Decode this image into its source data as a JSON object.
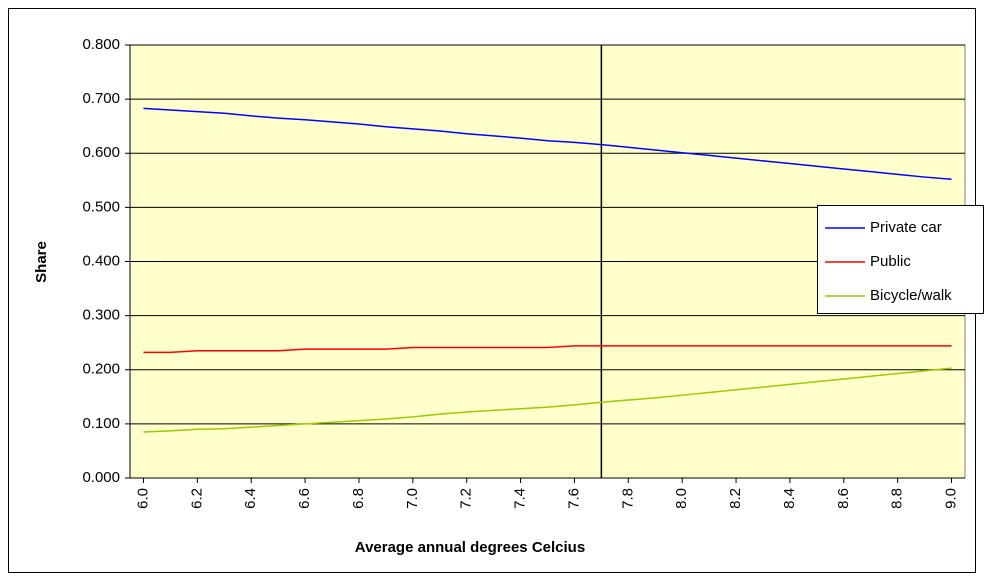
{
  "chart_data": {
    "type": "line",
    "xlabel": "Average annual degrees Celcius",
    "ylabel": "Share",
    "x": [
      6.0,
      6.1,
      6.2,
      6.3,
      6.4,
      6.5,
      6.6,
      6.7,
      6.8,
      6.9,
      7.0,
      7.1,
      7.2,
      7.3,
      7.4,
      7.5,
      7.6,
      7.7,
      7.8,
      7.9,
      8.0,
      8.1,
      8.2,
      8.3,
      8.4,
      8.5,
      8.6,
      8.7,
      8.8,
      8.9,
      9.0
    ],
    "series": [
      {
        "name": "Private car",
        "color": "#0000ff",
        "values": [
          0.683,
          0.68,
          0.677,
          0.674,
          0.669,
          0.665,
          0.662,
          0.658,
          0.654,
          0.649,
          0.645,
          0.641,
          0.636,
          0.632,
          0.628,
          0.623,
          0.62,
          0.616,
          0.611,
          0.606,
          0.601,
          0.596,
          0.591,
          0.586,
          0.581,
          0.576,
          0.571,
          0.566,
          0.561,
          0.556,
          0.552
        ]
      },
      {
        "name": "Public",
        "color": "#ff0000",
        "values": [
          0.232,
          0.232,
          0.235,
          0.235,
          0.235,
          0.235,
          0.238,
          0.238,
          0.238,
          0.238,
          0.241,
          0.241,
          0.241,
          0.241,
          0.241,
          0.241,
          0.244,
          0.244,
          0.244,
          0.244,
          0.244,
          0.244,
          0.244,
          0.244,
          0.244,
          0.244,
          0.244,
          0.244,
          0.244,
          0.244,
          0.244
        ]
      },
      {
        "name": "Bicycle/walk",
        "color": "#99cc00",
        "values": [
          0.085,
          0.087,
          0.09,
          0.091,
          0.094,
          0.097,
          0.1,
          0.103,
          0.106,
          0.109,
          0.113,
          0.118,
          0.122,
          0.125,
          0.128,
          0.131,
          0.135,
          0.14,
          0.144,
          0.148,
          0.153,
          0.158,
          0.163,
          0.168,
          0.173,
          0.178,
          0.183,
          0.188,
          0.193,
          0.198,
          0.203
        ]
      }
    ],
    "xlim": [
      5.95,
      9.05
    ],
    "xticks": [
      {
        "value": 6,
        "label": "6.0"
      },
      6.2,
      6.4,
      6.6,
      6.8,
      {
        "value": 7,
        "label": "7.0"
      },
      7.2,
      7.4,
      7.6,
      7.8,
      {
        "value": 8,
        "label": "8.0"
      },
      8.2,
      8.4,
      8.6,
      8.8,
      {
        "value": 9,
        "label": "9.0"
      }
    ],
    "ylim": [
      0,
      0.8
    ],
    "yticks": [
      {
        "value": 0,
        "label": "0.000"
      },
      {
        "value": 0.1,
        "label": "0.100"
      },
      {
        "value": 0.2,
        "label": "0.200"
      },
      {
        "value": 0.3,
        "label": "0.300"
      },
      {
        "value": 0.4,
        "label": "0.400"
      },
      {
        "value": 0.5,
        "label": "0.500"
      },
      {
        "value": 0.6,
        "label": "0.600"
      },
      {
        "value": 0.7,
        "label": "0.700"
      },
      {
        "value": 0.8,
        "label": "0.800"
      }
    ],
    "vertical_line_x": 7.7,
    "grid": true,
    "plot_background": "#ffffcc",
    "legend": "right"
  }
}
